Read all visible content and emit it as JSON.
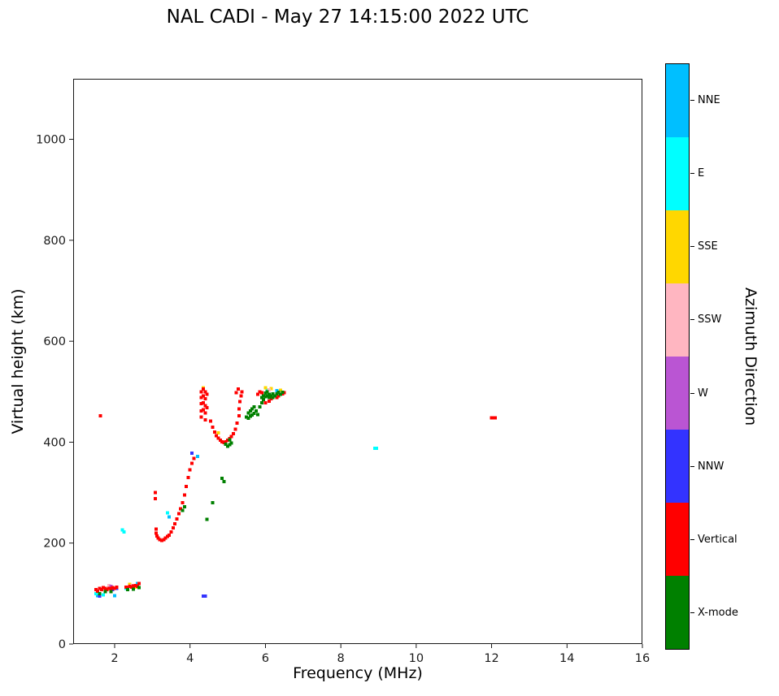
{
  "title": "NAL CADI - May 27 14:15:00 2022 UTC",
  "axes": {
    "xlabel": "Frequency (MHz)",
    "ylabel": "Virtual height (km)",
    "xticks": [
      2,
      4,
      6,
      8,
      10,
      12,
      14,
      16
    ],
    "yticks": [
      0,
      200,
      400,
      600,
      800,
      1000
    ],
    "xlim": [
      0.9,
      16
    ],
    "ylim": [
      0,
      1120
    ],
    "frame_color": "#000000",
    "grid": false
  },
  "colorbar": {
    "title": "Azimuth Direction",
    "items": [
      {
        "label": "NNE",
        "color": "#00BFFF"
      },
      {
        "label": "E",
        "color": "#00FFFF"
      },
      {
        "label": "SSE",
        "color": "#FFD700"
      },
      {
        "label": "SSW",
        "color": "#FFB6C1"
      },
      {
        "label": "W",
        "color": "#BA55D3"
      },
      {
        "label": "NNW",
        "color": "#3333FF"
      },
      {
        "label": "Vertical",
        "color": "#FF0000"
      },
      {
        "label": "X-mode",
        "color": "#008000"
      }
    ]
  },
  "chart_data": {
    "type": "scatter",
    "title": "NAL CADI - May 27 14:15:00 2022 UTC",
    "xlabel": "Frequency (MHz)",
    "ylabel": "Virtual height (km)",
    "xlim": [
      0.9,
      16
    ],
    "ylim": [
      0,
      1120
    ],
    "marker": "square",
    "marker_size_px": 4,
    "legend_position": "right-colorbar",
    "series": [
      {
        "name": "NNE",
        "color": "#00BFFF",
        "points": [
          [
            1.55,
            96
          ],
          [
            2.0,
            96
          ],
          [
            2.6,
            120
          ],
          [
            3.45,
            252
          ],
          [
            4.2,
            372
          ],
          [
            6.3,
            502
          ]
        ]
      },
      {
        "name": "E",
        "color": "#00FFFF",
        "points": [
          [
            1.5,
            100
          ],
          [
            1.7,
            97
          ],
          [
            2.3,
            110
          ],
          [
            2.2,
            226
          ],
          [
            2.25,
            222
          ],
          [
            3.4,
            260
          ],
          [
            6.05,
            503
          ],
          [
            8.9,
            388
          ],
          [
            8.95,
            388
          ]
        ]
      },
      {
        "name": "SSE",
        "color": "#FFD700",
        "points": [
          [
            2.4,
            118
          ],
          [
            2.55,
            113
          ],
          [
            4.35,
            508
          ],
          [
            4.75,
            418
          ],
          [
            6.0,
            508
          ],
          [
            6.15,
            506
          ],
          [
            6.4,
            503
          ]
        ]
      },
      {
        "name": "SSW",
        "color": "#FFB6C1",
        "points": [
          [
            1.85,
            116
          ],
          [
            2.45,
            116
          ],
          [
            6.1,
            504
          ]
        ]
      },
      {
        "name": "W",
        "color": "#BA55D3",
        "points": [
          [
            1.9,
            114
          ],
          [
            2.5,
            112
          ]
        ]
      },
      {
        "name": "NNW",
        "color": "#3333FF",
        "points": [
          [
            1.6,
            95
          ],
          [
            1.95,
            108
          ],
          [
            2.05,
            110
          ],
          [
            4.05,
            378
          ],
          [
            4.35,
            95
          ],
          [
            4.4,
            95
          ]
        ]
      },
      {
        "name": "Vertical",
        "color": "#FF0000",
        "points": [
          [
            1.5,
            108
          ],
          [
            1.55,
            105
          ],
          [
            1.6,
            110
          ],
          [
            1.65,
            108
          ],
          [
            1.7,
            112
          ],
          [
            1.75,
            110
          ],
          [
            1.8,
            108
          ],
          [
            1.85,
            110
          ],
          [
            1.9,
            110
          ],
          [
            1.95,
            112
          ],
          [
            2.0,
            110
          ],
          [
            2.05,
            113
          ],
          [
            2.3,
            113
          ],
          [
            2.35,
            112
          ],
          [
            2.4,
            114
          ],
          [
            2.45,
            113
          ],
          [
            2.5,
            115
          ],
          [
            2.55,
            116
          ],
          [
            2.6,
            114
          ],
          [
            2.65,
            120
          ],
          [
            1.62,
            452
          ],
          [
            3.08,
            300
          ],
          [
            3.08,
            288
          ],
          [
            3.1,
            228
          ],
          [
            3.1,
            220
          ],
          [
            3.12,
            214
          ],
          [
            3.15,
            210
          ],
          [
            3.2,
            207
          ],
          [
            3.25,
            205
          ],
          [
            3.3,
            207
          ],
          [
            3.35,
            210
          ],
          [
            3.4,
            213
          ],
          [
            3.45,
            216
          ],
          [
            3.5,
            222
          ],
          [
            3.55,
            230
          ],
          [
            3.6,
            238
          ],
          [
            3.65,
            248
          ],
          [
            3.7,
            258
          ],
          [
            3.75,
            268
          ],
          [
            3.8,
            280
          ],
          [
            3.85,
            295
          ],
          [
            3.9,
            312
          ],
          [
            3.95,
            330
          ],
          [
            4.0,
            345
          ],
          [
            4.05,
            358
          ],
          [
            4.1,
            368
          ],
          [
            4.3,
            500
          ],
          [
            4.3,
            488
          ],
          [
            4.3,
            476
          ],
          [
            4.3,
            462
          ],
          [
            4.3,
            450
          ],
          [
            4.35,
            505
          ],
          [
            4.35,
            492
          ],
          [
            4.35,
            478
          ],
          [
            4.35,
            464
          ],
          [
            4.4,
            500
          ],
          [
            4.4,
            486
          ],
          [
            4.4,
            472
          ],
          [
            4.4,
            458
          ],
          [
            4.4,
            444
          ],
          [
            4.45,
            495
          ],
          [
            4.45,
            468
          ],
          [
            4.55,
            442
          ],
          [
            4.6,
            430
          ],
          [
            4.65,
            420
          ],
          [
            4.7,
            413
          ],
          [
            4.75,
            408
          ],
          [
            4.8,
            404
          ],
          [
            4.85,
            401
          ],
          [
            4.9,
            399
          ],
          [
            4.95,
            401
          ],
          [
            5.0,
            404
          ],
          [
            5.05,
            407
          ],
          [
            5.1,
            411
          ],
          [
            5.15,
            417
          ],
          [
            5.2,
            426
          ],
          [
            5.25,
            438
          ],
          [
            5.3,
            452
          ],
          [
            5.3,
            466
          ],
          [
            5.32,
            480
          ],
          [
            5.35,
            492
          ],
          [
            5.38,
            500
          ],
          [
            5.28,
            505
          ],
          [
            5.22,
            498
          ],
          [
            5.8,
            495
          ],
          [
            5.85,
            500
          ],
          [
            5.9,
            498
          ],
          [
            6.0,
            478
          ],
          [
            6.1,
            481
          ],
          [
            6.15,
            486
          ],
          [
            6.3,
            488
          ],
          [
            6.35,
            492
          ],
          [
            6.45,
            496
          ],
          [
            6.5,
            498
          ],
          [
            12.0,
            448
          ],
          [
            12.05,
            448
          ],
          [
            12.1,
            448
          ]
        ]
      },
      {
        "name": "X-mode",
        "color": "#008000",
        "points": [
          [
            1.6,
            100
          ],
          [
            1.75,
            104
          ],
          [
            1.9,
            104
          ],
          [
            2.35,
            108
          ],
          [
            2.5,
            109
          ],
          [
            2.65,
            112
          ],
          [
            3.8,
            265
          ],
          [
            3.85,
            272
          ],
          [
            4.45,
            247
          ],
          [
            4.6,
            280
          ],
          [
            4.85,
            328
          ],
          [
            4.9,
            322
          ],
          [
            4.95,
            396
          ],
          [
            5.0,
            392
          ],
          [
            5.05,
            395
          ],
          [
            5.1,
            398
          ],
          [
            5.05,
            405
          ],
          [
            5.5,
            450
          ],
          [
            5.55,
            447
          ],
          [
            5.6,
            451
          ],
          [
            5.65,
            454
          ],
          [
            5.7,
            457
          ],
          [
            5.55,
            458
          ],
          [
            5.6,
            462
          ],
          [
            5.65,
            466
          ],
          [
            5.7,
            470
          ],
          [
            5.75,
            462
          ],
          [
            5.8,
            455
          ],
          [
            5.85,
            470
          ],
          [
            5.9,
            478
          ],
          [
            5.95,
            484
          ],
          [
            5.9,
            488
          ],
          [
            5.95,
            492
          ],
          [
            6.0,
            490
          ],
          [
            6.0,
            497
          ],
          [
            6.05,
            492
          ],
          [
            6.05,
            500
          ],
          [
            6.1,
            495
          ],
          [
            6.1,
            488
          ],
          [
            6.15,
            492
          ],
          [
            6.2,
            496
          ],
          [
            6.2,
            488
          ],
          [
            6.25,
            492
          ],
          [
            6.3,
            496
          ],
          [
            6.35,
            499
          ],
          [
            6.4,
            495
          ],
          [
            6.45,
            499
          ]
        ]
      }
    ]
  }
}
